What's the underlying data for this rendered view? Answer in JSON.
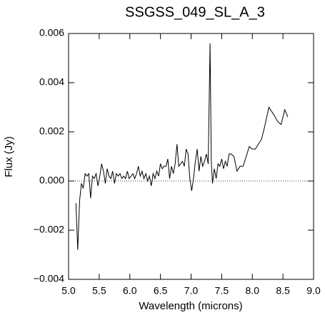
{
  "chart_data": {
    "type": "line",
    "title": "SSGSS_049_SL_A_3",
    "xlabel": "Wavelength (microns)",
    "ylabel": "Flux (Jy)",
    "xlim": [
      5.0,
      9.0
    ],
    "ylim": [
      -0.004,
      0.006
    ],
    "xticks": [
      {
        "value": 5.0,
        "label": "5.0"
      },
      {
        "value": 5.5,
        "label": "5.5"
      },
      {
        "value": 6.0,
        "label": "6.0"
      },
      {
        "value": 6.5,
        "label": "6.5"
      },
      {
        "value": 7.0,
        "label": "7.0"
      },
      {
        "value": 7.5,
        "label": "7.5"
      },
      {
        "value": 8.0,
        "label": "8.0"
      },
      {
        "value": 8.5,
        "label": "8.5"
      },
      {
        "value": 9.0,
        "label": "9.0"
      }
    ],
    "yticks": [
      {
        "value": -0.004,
        "label": "−0.004"
      },
      {
        "value": -0.002,
        "label": "−0.002"
      },
      {
        "value": 0,
        "label": "0.000"
      },
      {
        "value": 0.002,
        "label": "0.002"
      },
      {
        "value": 0.004,
        "label": "0.004"
      },
      {
        "value": 0.006,
        "label": "0.006"
      }
    ],
    "reference_line": 0,
    "series": [
      {
        "name": "flux",
        "color": "#000000",
        "x": [
          5.12,
          5.15,
          5.18,
          5.21,
          5.24,
          5.27,
          5.3,
          5.33,
          5.36,
          5.39,
          5.42,
          5.45,
          5.48,
          5.51,
          5.54,
          5.57,
          5.6,
          5.63,
          5.66,
          5.69,
          5.72,
          5.75,
          5.78,
          5.81,
          5.84,
          5.87,
          5.9,
          5.93,
          5.96,
          5.99,
          6.02,
          6.05,
          6.08,
          6.11,
          6.14,
          6.17,
          6.2,
          6.23,
          6.26,
          6.29,
          6.32,
          6.35,
          6.38,
          6.41,
          6.44,
          6.47,
          6.5,
          6.53,
          6.56,
          6.59,
          6.62,
          6.65,
          6.68,
          6.71,
          6.74,
          6.77,
          6.8,
          6.83,
          6.86,
          6.89,
          6.92,
          6.95,
          6.98,
          7.01,
          7.04,
          7.07,
          7.1,
          7.13,
          7.16,
          7.19,
          7.22,
          7.25,
          7.28,
          7.31,
          7.33,
          7.35,
          7.38,
          7.41,
          7.44,
          7.47,
          7.5,
          7.53,
          7.56,
          7.59,
          7.62,
          7.65,
          7.7,
          7.75,
          7.8,
          7.85,
          7.9,
          7.95,
          8.0,
          8.05,
          8.1,
          8.15,
          8.2,
          8.27,
          8.35,
          8.42,
          8.47,
          8.53,
          8.58
        ],
        "values": [
          -0.0009,
          -0.0028,
          -0.0008,
          -0.0001,
          -0.0003,
          0.0003,
          0.0002,
          0.0003,
          -0.0007,
          0.0002,
          0.0001,
          0.0003,
          -0.0002,
          0.0002,
          0.0007,
          0.0004,
          -0.0001,
          0.0005,
          0.0002,
          0.0001,
          0.0004,
          -0.0001,
          0.0003,
          0.0002,
          0.0003,
          0.0001,
          0.0002,
          0.0001,
          0.0004,
          0.0001,
          0.0002,
          0.0003,
          0.0001,
          0.0003,
          0.0006,
          0.0002,
          0.0004,
          0.0001,
          0.0003,
          0.0,
          0.0002,
          -0.0002,
          0.0003,
          0.0001,
          0.0004,
          0.0002,
          0.0007,
          0.0005,
          0.0006,
          0.0006,
          0.0009,
          0.0001,
          0.0006,
          0.0003,
          0.0007,
          0.0015,
          0.0006,
          0.0007,
          0.0008,
          0.0006,
          0.0013,
          0.0011,
          0.0001,
          -0.0004,
          0.0001,
          0.0008,
          0.0013,
          0.0004,
          0.001,
          0.0006,
          0.0008,
          0.0011,
          0.0007,
          0.0056,
          0.0008,
          -0.0001,
          0.0005,
          0.0001,
          0.0007,
          0.0006,
          0.0009,
          0.0005,
          0.0008,
          0.0006,
          0.0011,
          0.0011,
          0.001,
          0.0004,
          0.0006,
          0.0006,
          0.001,
          0.0014,
          0.0013,
          0.0013,
          0.0015,
          0.0017,
          0.0022,
          0.003,
          0.0027,
          0.0024,
          0.0023,
          0.0029,
          0.0026
        ]
      }
    ]
  }
}
